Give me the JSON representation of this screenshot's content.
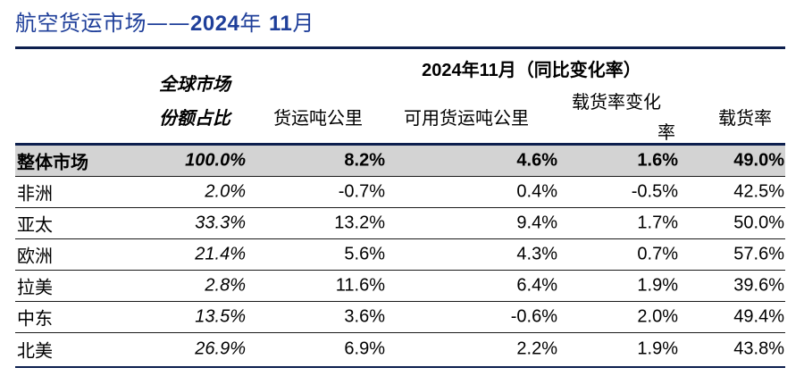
{
  "title": {
    "prefix": "航空货运市场——",
    "year": "2024",
    "year_char": "年",
    "month": "11",
    "month_char": "月"
  },
  "header": {
    "group": "2024年11月（同比变化率）",
    "share_line1": "全球市场",
    "share_line2": "份额占比",
    "ctk": "货运吨公里",
    "actk": "可用货运吨公里",
    "lf_change_line1": "载货率变化",
    "lf_change_line2": "率",
    "lf": "载货率"
  },
  "rows": [
    {
      "region": "整体市场",
      "share": "100.0%",
      "ctk": "8.2%",
      "actk": "4.6%",
      "lf_change": "1.6%",
      "lf": "49.0%"
    },
    {
      "region": "非洲",
      "share": "2.0%",
      "ctk": "-0.7%",
      "actk": "0.4%",
      "lf_change": "-0.5%",
      "lf": "42.5%"
    },
    {
      "region": "亚太",
      "share": "33.3%",
      "ctk": "13.2%",
      "actk": "9.4%",
      "lf_change": "1.7%",
      "lf": "50.0%"
    },
    {
      "region": "欧洲",
      "share": "21.4%",
      "ctk": "5.6%",
      "actk": "4.3%",
      "lf_change": "0.7%",
      "lf": "57.6%"
    },
    {
      "region": "拉美",
      "share": "2.8%",
      "ctk": "11.6%",
      "actk": "6.4%",
      "lf_change": "1.9%",
      "lf": "39.6%"
    },
    {
      "region": "中东",
      "share": "13.5%",
      "ctk": "3.6%",
      "actk": "-0.6%",
      "lf_change": "2.0%",
      "lf": "49.4%"
    },
    {
      "region": "北美",
      "share": "26.9%",
      "ctk": "6.9%",
      "actk": "2.2%",
      "lf_change": "1.9%",
      "lf": "43.8%"
    }
  ],
  "colors": {
    "title": "#1f3f9a",
    "rule": "#0d1f4e",
    "total_row_bg": "#d3d3d3"
  }
}
